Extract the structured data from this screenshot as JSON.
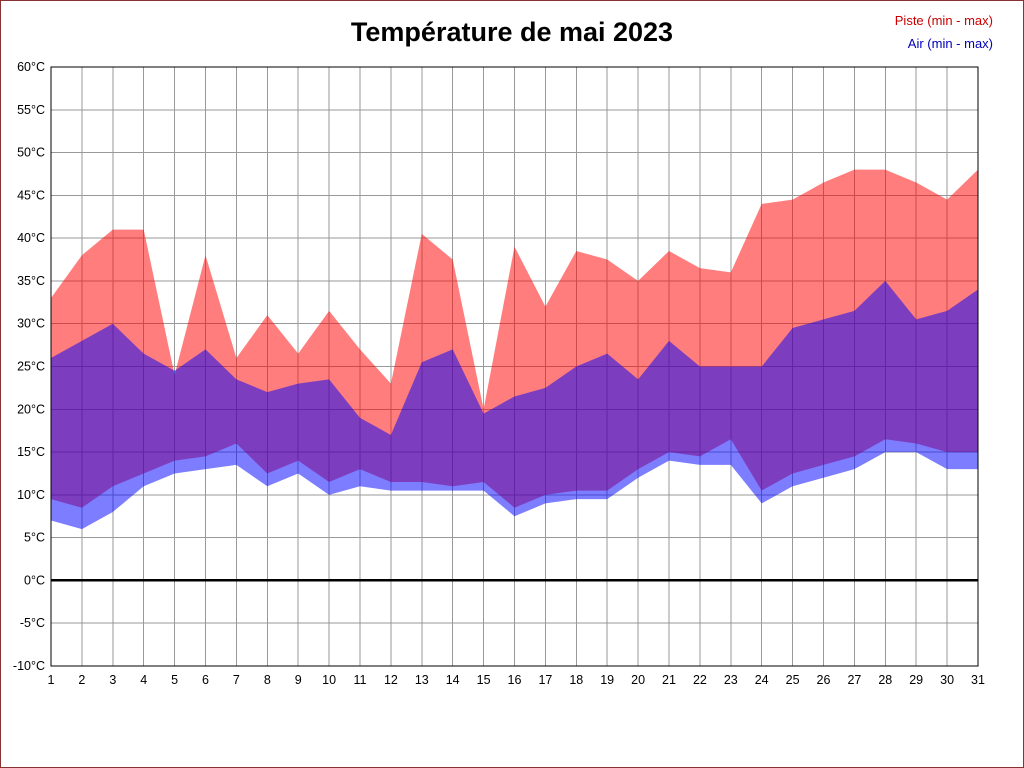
{
  "title": "Température de mai 2023",
  "colors": {
    "frame": "#883333",
    "piste_fill": "#ff0000",
    "air_fill": "#0000ff",
    "piste_text": "#cc0000",
    "air_text": "#0000bb",
    "grid": "#999999",
    "plot_border": "#000000",
    "zero_line": "#000000",
    "label_text": "#000000"
  },
  "chart_data": {
    "type": "area",
    "title": "Température de mai 2023",
    "x": [
      1,
      2,
      3,
      4,
      5,
      6,
      7,
      8,
      9,
      10,
      11,
      12,
      13,
      14,
      15,
      16,
      17,
      18,
      19,
      20,
      21,
      22,
      23,
      24,
      25,
      26,
      27,
      28,
      29,
      30,
      31
    ],
    "xlabel": "",
    "ylabel": "",
    "ylabel_suffix": "°C",
    "ylim": [
      -10,
      60
    ],
    "ytick_step": 5,
    "grid": true,
    "zero_line": true,
    "legend_position": "top-right",
    "band_opacity": 0.51,
    "series": [
      {
        "id": "piste",
        "name": "Piste (min - max)",
        "color": "#ff0000",
        "min": [
          9.5,
          8.5,
          11,
          12.5,
          14,
          14.5,
          16,
          12.5,
          14,
          11.5,
          13,
          11.5,
          11.5,
          11,
          11.5,
          8.5,
          10,
          10.5,
          10.5,
          13,
          15,
          14.5,
          16.5,
          10.5,
          12.5,
          13.5,
          14.5,
          16.5,
          16,
          15,
          15
        ],
        "max": [
          33,
          38,
          41,
          41,
          24,
          38,
          26,
          31,
          26.5,
          31.5,
          27,
          23,
          40.5,
          37.5,
          20,
          39,
          32,
          38.5,
          37.5,
          35,
          38.5,
          36.5,
          36,
          44,
          44.5,
          46.5,
          48,
          48,
          46.5,
          44.5,
          48
        ]
      },
      {
        "id": "air",
        "name": "Air (min - max)",
        "color": "#0000ff",
        "min": [
          7,
          6,
          8,
          11,
          12.5,
          13,
          13.5,
          11,
          12.5,
          10,
          11,
          10.5,
          10.5,
          10.5,
          10.5,
          7.5,
          9,
          9.5,
          9.5,
          12,
          14,
          13.5,
          13.5,
          9,
          11,
          12,
          13,
          15,
          15,
          13,
          13
        ],
        "max": [
          26,
          28,
          30,
          26.5,
          24.5,
          27,
          23.5,
          22,
          23,
          23.5,
          19,
          17,
          25.5,
          27,
          19.5,
          21.5,
          22.5,
          25,
          26.5,
          23.5,
          28,
          25,
          25,
          25,
          29.5,
          30.5,
          31.5,
          35,
          30.5,
          31.5,
          34
        ]
      }
    ]
  }
}
